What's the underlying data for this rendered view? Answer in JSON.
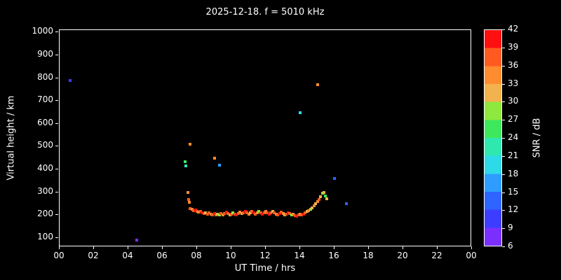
{
  "title": "2025-12-18. f = 5010 kHz",
  "colors": {
    "background": "#000000",
    "foreground": "#ffffff"
  },
  "chart_data": {
    "type": "scatter",
    "title": "2025-12-18. f = 5010 kHz",
    "xlabel": "UT Time / hrs",
    "ylabel": "Virtual height / km",
    "xlim": [
      0,
      24
    ],
    "ylim": [
      60,
      1010
    ],
    "grid": false,
    "x_ticks": [
      {
        "value": 0,
        "label": "00"
      },
      {
        "value": 2,
        "label": "02"
      },
      {
        "value": 4,
        "label": "04"
      },
      {
        "value": 6,
        "label": "06"
      },
      {
        "value": 8,
        "label": "08"
      },
      {
        "value": 10,
        "label": "10"
      },
      {
        "value": 12,
        "label": "12"
      },
      {
        "value": 14,
        "label": "14"
      },
      {
        "value": 16,
        "label": "16"
      },
      {
        "value": 18,
        "label": "18"
      },
      {
        "value": 20,
        "label": "20"
      },
      {
        "value": 22,
        "label": "22"
      },
      {
        "value": 24,
        "label": "00"
      }
    ],
    "y_ticks": [
      100,
      200,
      300,
      400,
      500,
      600,
      700,
      800,
      900,
      1000
    ],
    "colorbar": {
      "label": "SNR / dB",
      "ticks": [
        6,
        9,
        12,
        15,
        18,
        21,
        24,
        27,
        30,
        33,
        36,
        39,
        42
      ],
      "bands": [
        {
          "from": 6,
          "to": 9,
          "color": "#7b2fff"
        },
        {
          "from": 9,
          "to": 12,
          "color": "#3d3dff"
        },
        {
          "from": 12,
          "to": 15,
          "color": "#2e64ff"
        },
        {
          "from": 15,
          "to": 18,
          "color": "#2e9dff"
        },
        {
          "from": 18,
          "to": 21,
          "color": "#2ed9e8"
        },
        {
          "from": 21,
          "to": 24,
          "color": "#2ee8b0"
        },
        {
          "from": 24,
          "to": 27,
          "color": "#3ee85c"
        },
        {
          "from": 27,
          "to": 30,
          "color": "#8ee83e"
        },
        {
          "from": 30,
          "to": 33,
          "color": "#f2b24d"
        },
        {
          "from": 33,
          "to": 36,
          "color": "#ff8c2e"
        },
        {
          "from": 36,
          "to": 39,
          "color": "#ff5a1f"
        },
        {
          "from": 39,
          "to": 42,
          "color": "#ff0f0f"
        }
      ]
    },
    "points_format": [
      "ut_hours",
      "virtual_height_km",
      "snr_db"
    ],
    "points": [
      [
        0.6,
        790,
        9
      ],
      [
        4.5,
        90,
        7
      ],
      [
        7.3,
        435,
        24
      ],
      [
        7.35,
        415,
        21
      ],
      [
        7.45,
        300,
        33
      ],
      [
        7.5,
        270,
        36
      ],
      [
        7.55,
        255,
        33
      ],
      [
        7.6,
        510,
        33
      ],
      [
        7.6,
        230,
        36
      ],
      [
        7.7,
        225,
        33
      ],
      [
        7.8,
        218,
        36
      ],
      [
        7.9,
        222,
        39
      ],
      [
        8.0,
        215,
        36
      ],
      [
        8.1,
        212,
        33
      ],
      [
        8.2,
        216,
        36
      ],
      [
        8.3,
        210,
        39
      ],
      [
        8.4,
        206,
        36
      ],
      [
        8.5,
        210,
        30
      ],
      [
        8.6,
        205,
        36
      ],
      [
        8.7,
        210,
        36
      ],
      [
        8.8,
        204,
        33
      ],
      [
        8.9,
        200,
        36
      ],
      [
        9.0,
        450,
        33
      ],
      [
        9.0,
        206,
        39
      ],
      [
        9.1,
        200,
        36
      ],
      [
        9.2,
        205,
        30
      ],
      [
        9.3,
        420,
        15
      ],
      [
        9.3,
        200,
        27
      ],
      [
        9.4,
        206,
        36
      ],
      [
        9.5,
        201,
        33
      ],
      [
        9.6,
        206,
        36
      ],
      [
        9.7,
        212,
        39
      ],
      [
        9.8,
        206,
        36
      ],
      [
        9.9,
        200,
        30
      ],
      [
        10.0,
        205,
        36
      ],
      [
        10.1,
        210,
        27
      ],
      [
        10.2,
        204,
        36
      ],
      [
        10.3,
        200,
        39
      ],
      [
        10.4,
        206,
        36
      ],
      [
        10.5,
        212,
        33
      ],
      [
        10.6,
        206,
        30
      ],
      [
        10.7,
        210,
        36
      ],
      [
        10.8,
        216,
        39
      ],
      [
        10.9,
        210,
        36
      ],
      [
        11.0,
        205,
        33
      ],
      [
        11.1,
        210,
        30
      ],
      [
        11.2,
        215,
        36
      ],
      [
        11.3,
        210,
        39
      ],
      [
        11.4,
        205,
        36
      ],
      [
        11.5,
        210,
        33
      ],
      [
        11.6,
        216,
        27
      ],
      [
        11.7,
        210,
        36
      ],
      [
        11.8,
        205,
        39
      ],
      [
        11.9,
        210,
        36
      ],
      [
        12.0,
        215,
        33
      ],
      [
        12.1,
        210,
        36
      ],
      [
        12.2,
        205,
        39
      ],
      [
        12.3,
        210,
        36
      ],
      [
        12.4,
        216,
        30
      ],
      [
        12.5,
        210,
        36
      ],
      [
        12.6,
        205,
        33
      ],
      [
        12.7,
        200,
        36
      ],
      [
        12.8,
        206,
        39
      ],
      [
        12.9,
        212,
        36
      ],
      [
        13.0,
        206,
        33
      ],
      [
        13.1,
        200,
        30
      ],
      [
        13.2,
        205,
        36
      ],
      [
        13.3,
        211,
        39
      ],
      [
        13.4,
        206,
        36
      ],
      [
        13.5,
        200,
        27
      ],
      [
        13.6,
        205,
        33
      ],
      [
        13.7,
        199,
        36
      ],
      [
        13.8,
        195,
        39
      ],
      [
        13.9,
        200,
        36
      ],
      [
        14.0,
        650,
        19
      ],
      [
        14.0,
        205,
        33
      ],
      [
        14.1,
        200,
        36
      ],
      [
        14.2,
        205,
        39
      ],
      [
        14.3,
        211,
        36
      ],
      [
        14.4,
        216,
        30
      ],
      [
        14.5,
        221,
        33
      ],
      [
        14.6,
        226,
        27
      ],
      [
        14.7,
        231,
        30
      ],
      [
        14.8,
        240,
        33
      ],
      [
        14.9,
        250,
        30
      ],
      [
        15.0,
        770,
        33
      ],
      [
        15.0,
        260,
        33
      ],
      [
        15.1,
        270,
        36
      ],
      [
        15.2,
        282,
        30
      ],
      [
        15.3,
        295,
        27
      ],
      [
        15.4,
        300,
        30
      ],
      [
        15.45,
        285,
        24
      ],
      [
        15.55,
        272,
        30
      ],
      [
        16.0,
        360,
        12
      ],
      [
        16.7,
        250,
        13
      ]
    ]
  }
}
